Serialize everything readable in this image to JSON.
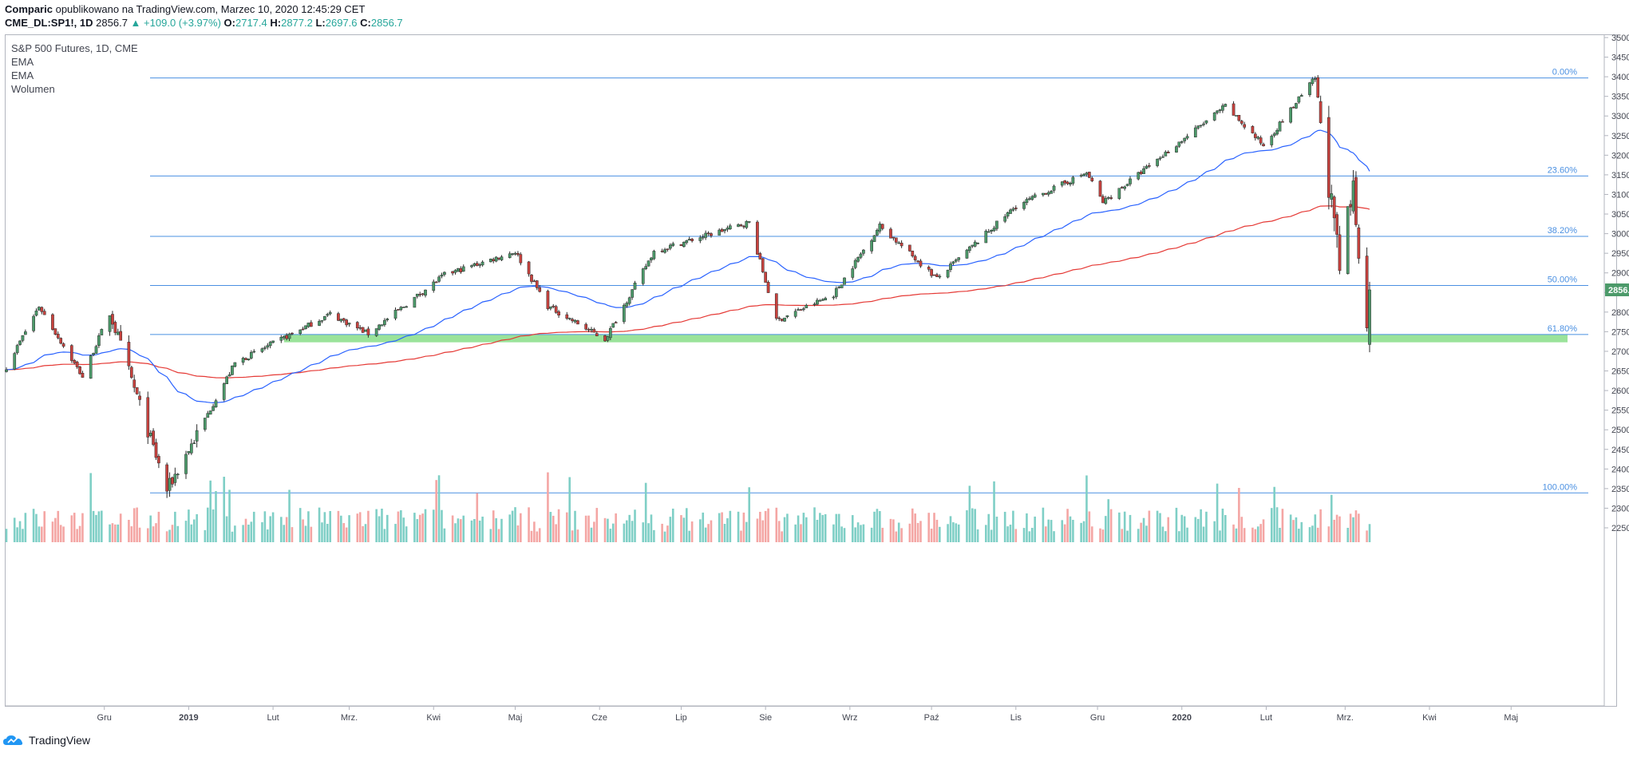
{
  "header": {
    "author": "Comparic",
    "published": "opublikowano na TradingView.com, Marzec 10, 2020 12:45:29 CET",
    "symbol": "CME_DL:SP1!, 1D",
    "last": "2856.7",
    "change": "+109.0 (+3.97%)",
    "o_label": "O:",
    "o_val": "2717.4",
    "h_label": "H:",
    "h_val": "2877.2",
    "l_label": "L:",
    "l_val": "2697.6",
    "c_label": "C:",
    "c_val": "2856.7"
  },
  "legend": {
    "title": "S&P 500 Futures, 1D, CME",
    "ind1": "EMA",
    "ind2": "EMA",
    "ind3": "Wolumen"
  },
  "footer": {
    "brand": "TradingView"
  },
  "colors": {
    "up": "#26a69a",
    "up_body": "#4c9a6a",
    "down": "#ef5350",
    "down_body": "#c8423e",
    "ema_fast": "#2962ff",
    "ema_slow": "#e53935",
    "fib": "#4a90e2",
    "zone": "#8fe08f",
    "price_tag": "#4c9a6a"
  },
  "chart_data": {
    "type": "candlestick",
    "title": "S&P 500 Futures, 1D, CME",
    "y_ticks": [
      3500,
      3450,
      3400,
      3350,
      3300,
      3250,
      3200,
      3150,
      3100,
      3050,
      3000,
      2950,
      2900,
      2850,
      2800,
      2750,
      2700,
      2650,
      2600,
      2550,
      2500,
      2450,
      2400,
      2350,
      2300,
      2250
    ],
    "ylim": [
      2200,
      3520
    ],
    "x_labels": [
      "Gru",
      "2019",
      "Lut",
      "Mrz.",
      "Kwi",
      "Maj",
      "Cze",
      "Lip",
      "Sie",
      "Wrz",
      "Paź",
      "Lis",
      "Gru",
      "2020",
      "Lut",
      "Mrz.",
      "Kwi",
      "Maj"
    ],
    "last_price": "2856.7",
    "fib_levels": [
      {
        "label": "0.00%",
        "price": 3397
      },
      {
        "label": "23.60%",
        "price": 3147
      },
      {
        "label": "38.20%",
        "price": 2993
      },
      {
        "label": "50.00%",
        "price": 2868
      },
      {
        "label": "61.80%",
        "price": 2743
      },
      {
        "label": "100.00%",
        "price": 2339
      }
    ],
    "support_zone": [
      2723,
      2743
    ],
    "key_prices": [
      {
        "date": "2018-12-24",
        "price": 2346
      },
      {
        "date": "2019-05-01",
        "price": 2954
      },
      {
        "date": "2019-06-03",
        "price": 2730
      },
      {
        "date": "2019-07-26",
        "price": 3029
      },
      {
        "date": "2019-08-05",
        "price": 2778
      },
      {
        "date": "2020-02-19",
        "price": 3397
      },
      {
        "date": "2020-03-09",
        "price": 2697
      },
      {
        "date": "2020-03-10",
        "price": 2856.7
      }
    ],
    "series": [
      {
        "name": "EMA",
        "role": "fast"
      },
      {
        "name": "EMA",
        "role": "slow"
      },
      {
        "name": "Wolumen",
        "role": "volume"
      }
    ]
  }
}
